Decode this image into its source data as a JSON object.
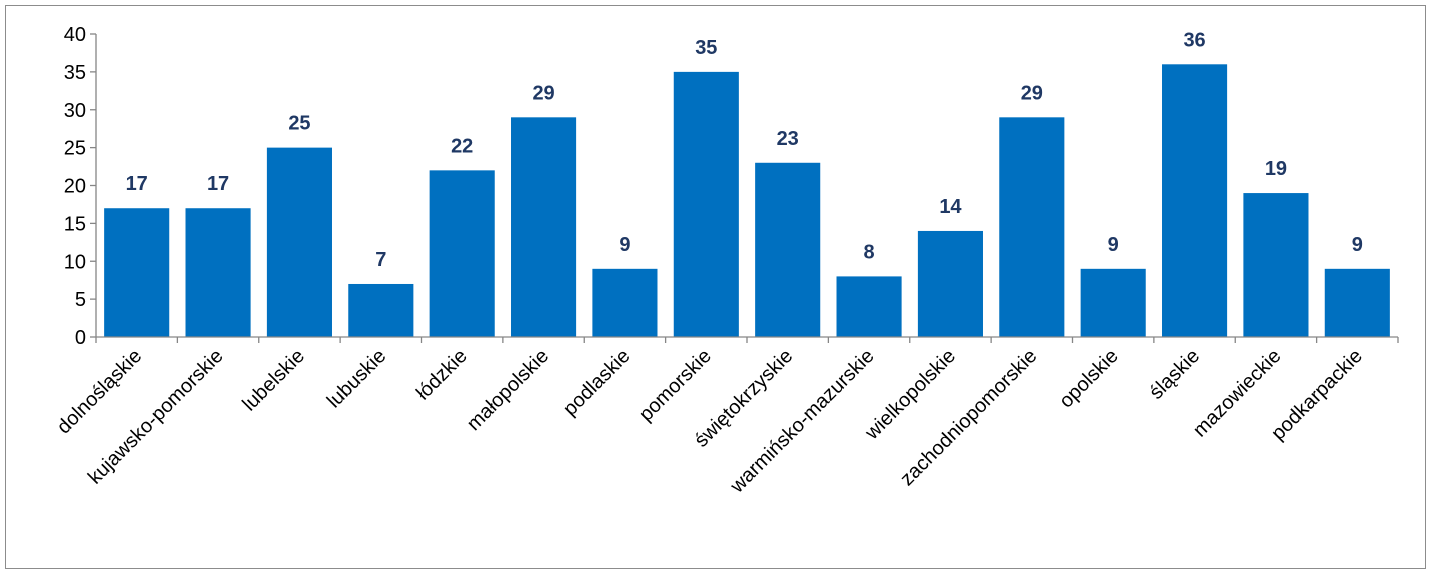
{
  "chart_data": {
    "type": "bar",
    "title": "",
    "xlabel": "",
    "ylabel": "",
    "categories": [
      "dolnośląskie",
      "kujawsko-pomorskie",
      "lubelskie",
      "lubuskie",
      "łódzkie",
      "małopolskie",
      "podlaskie",
      "pomorskie",
      "świętokrzyskie",
      "warmińsko-mazurskie",
      "wielkopolskie",
      "zachodniopomorskie",
      "opolskie",
      "śląskie",
      "mazowieckie",
      "podkarpackie"
    ],
    "values": [
      17,
      17,
      25,
      7,
      22,
      29,
      9,
      35,
      23,
      8,
      14,
      29,
      9,
      36,
      19,
      9
    ],
    "ylim": [
      0,
      40
    ],
    "yticks": [
      0,
      5,
      10,
      15,
      20,
      25,
      30,
      35,
      40
    ],
    "grid": false,
    "legend": "none",
    "bar_color": "#0070c0",
    "label_color": "#1f3864"
  }
}
